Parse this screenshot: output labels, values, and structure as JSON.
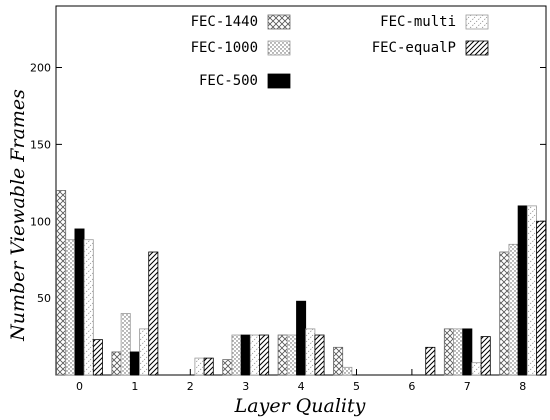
{
  "chart_data": {
    "type": "bar",
    "xlabel": "Layer Quality",
    "ylabel": "Number Viewable Frames",
    "categories": [
      "0",
      "1",
      "2",
      "3",
      "4",
      "5",
      "6",
      "7",
      "8"
    ],
    "ylim": [
      0,
      240
    ],
    "yticks": [
      50,
      100,
      150,
      200
    ],
    "grid": false,
    "legend_position": "top",
    "series": [
      {
        "name": "FEC-1440",
        "pattern": "crosshatch",
        "values": [
          120,
          15,
          0,
          10,
          26,
          18,
          0,
          30,
          80
        ]
      },
      {
        "name": "FEC-1000",
        "pattern": "dots",
        "values": [
          88,
          40,
          0,
          26,
          26,
          5,
          0,
          30,
          85
        ]
      },
      {
        "name": "FEC-500",
        "pattern": "solid",
        "values": [
          95,
          15,
          0,
          26,
          48,
          0,
          0,
          30,
          110
        ]
      },
      {
        "name": "FEC-multi",
        "pattern": "dashes",
        "values": [
          88,
          30,
          11,
          26,
          30,
          0,
          0,
          8,
          110
        ]
      },
      {
        "name": "FEC-equalP",
        "pattern": "diagonal",
        "values": [
          23,
          80,
          11,
          26,
          26,
          0,
          18,
          25,
          100
        ]
      }
    ]
  }
}
